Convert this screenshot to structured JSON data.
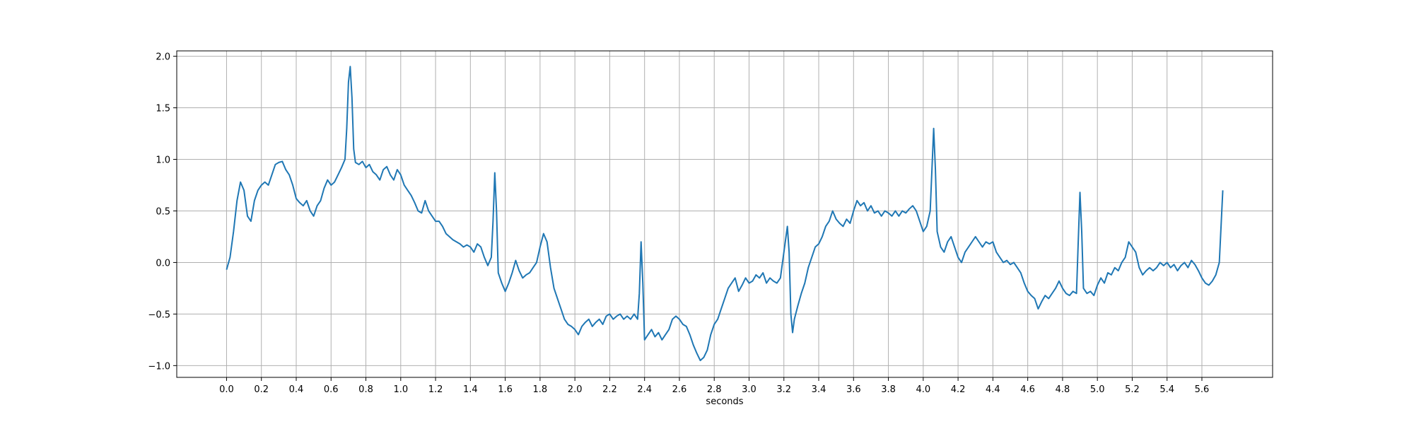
{
  "chart_data": {
    "type": "line",
    "xlabel": "seconds",
    "color": "#1f77b4",
    "grid": true,
    "xlim": [
      -0.286,
      6.006
    ],
    "ylim": [
      -1.114,
      2.052
    ],
    "xticks": [
      {
        "value": 0,
        "label": "0.0"
      },
      {
        "value": 0.2,
        "label": "0.2"
      },
      {
        "value": 0.4,
        "label": "0.4"
      },
      {
        "value": 0.6,
        "label": "0.6"
      },
      {
        "value": 0.8,
        "label": "0.8"
      },
      {
        "value": 1,
        "label": "1.0"
      },
      {
        "value": 1.2,
        "label": "1.2"
      },
      {
        "value": 1.4,
        "label": "1.4"
      },
      {
        "value": 1.6,
        "label": "1.6"
      },
      {
        "value": 1.8,
        "label": "1.8"
      },
      {
        "value": 2,
        "label": "2.0"
      },
      {
        "value": 2.2,
        "label": "2.2"
      },
      {
        "value": 2.4,
        "label": "2.4"
      },
      {
        "value": 2.6,
        "label": "2.6"
      },
      {
        "value": 2.8,
        "label": "2.8"
      },
      {
        "value": 3,
        "label": "3.0"
      },
      {
        "value": 3.2,
        "label": "3.2"
      },
      {
        "value": 3.4,
        "label": "3.4"
      },
      {
        "value": 3.6,
        "label": "3.6"
      },
      {
        "value": 3.8,
        "label": "3.8"
      },
      {
        "value": 4,
        "label": "4.0"
      },
      {
        "value": 4.2,
        "label": "4.2"
      },
      {
        "value": 4.4,
        "label": "4.4"
      },
      {
        "value": 4.6,
        "label": "4.6"
      },
      {
        "value": 4.8,
        "label": "4.8"
      },
      {
        "value": 5,
        "label": "5.0"
      },
      {
        "value": 5.2,
        "label": "5.2"
      },
      {
        "value": 5.4,
        "label": "5.4"
      },
      {
        "value": 5.6,
        "label": "5.6"
      }
    ],
    "yticks": [
      {
        "value": -1,
        "label": "−1.0"
      },
      {
        "value": -0.5,
        "label": "−0.5"
      },
      {
        "value": 0,
        "label": "0.0"
      },
      {
        "value": 0.5,
        "label": "0.5"
      },
      {
        "value": 1,
        "label": "1.0"
      },
      {
        "value": 1.5,
        "label": "1.5"
      },
      {
        "value": 2,
        "label": "2.0"
      }
    ],
    "x": [
      0.0,
      0.02,
      0.04,
      0.06,
      0.08,
      0.1,
      0.12,
      0.14,
      0.16,
      0.18,
      0.2,
      0.22,
      0.24,
      0.26,
      0.28,
      0.3,
      0.32,
      0.34,
      0.36,
      0.38,
      0.4,
      0.42,
      0.44,
      0.46,
      0.48,
      0.5,
      0.52,
      0.54,
      0.56,
      0.58,
      0.6,
      0.62,
      0.64,
      0.66,
      0.68,
      0.69,
      0.7,
      0.71,
      0.72,
      0.73,
      0.74,
      0.76,
      0.78,
      0.8,
      0.82,
      0.84,
      0.86,
      0.88,
      0.9,
      0.92,
      0.94,
      0.96,
      0.98,
      1.0,
      1.02,
      1.04,
      1.06,
      1.08,
      1.1,
      1.12,
      1.14,
      1.16,
      1.18,
      1.2,
      1.22,
      1.24,
      1.26,
      1.28,
      1.3,
      1.32,
      1.34,
      1.36,
      1.38,
      1.4,
      1.42,
      1.44,
      1.46,
      1.48,
      1.5,
      1.52,
      1.53,
      1.54,
      1.55,
      1.56,
      1.58,
      1.6,
      1.62,
      1.64,
      1.66,
      1.68,
      1.7,
      1.72,
      1.74,
      1.76,
      1.78,
      1.8,
      1.82,
      1.84,
      1.86,
      1.88,
      1.9,
      1.92,
      1.94,
      1.96,
      1.98,
      2.0,
      2.02,
      2.04,
      2.06,
      2.08,
      2.1,
      2.12,
      2.14,
      2.16,
      2.18,
      2.2,
      2.22,
      2.24,
      2.26,
      2.28,
      2.3,
      2.32,
      2.34,
      2.36,
      2.37,
      2.38,
      2.39,
      2.4,
      2.42,
      2.44,
      2.46,
      2.48,
      2.5,
      2.52,
      2.54,
      2.56,
      2.58,
      2.6,
      2.62,
      2.64,
      2.66,
      2.68,
      2.7,
      2.72,
      2.74,
      2.76,
      2.78,
      2.8,
      2.82,
      2.84,
      2.86,
      2.88,
      2.9,
      2.92,
      2.94,
      2.96,
      2.98,
      3.0,
      3.02,
      3.04,
      3.06,
      3.08,
      3.1,
      3.12,
      3.14,
      3.16,
      3.18,
      3.2,
      3.22,
      3.23,
      3.24,
      3.25,
      3.26,
      3.28,
      3.3,
      3.32,
      3.34,
      3.36,
      3.38,
      3.4,
      3.42,
      3.44,
      3.46,
      3.48,
      3.5,
      3.52,
      3.54,
      3.56,
      3.58,
      3.6,
      3.62,
      3.64,
      3.66,
      3.68,
      3.7,
      3.72,
      3.74,
      3.76,
      3.78,
      3.8,
      3.82,
      3.84,
      3.86,
      3.88,
      3.9,
      3.92,
      3.94,
      3.96,
      3.98,
      4.0,
      4.02,
      4.04,
      4.05,
      4.06,
      4.07,
      4.08,
      4.1,
      4.12,
      4.14,
      4.16,
      4.18,
      4.2,
      4.22,
      4.24,
      4.26,
      4.28,
      4.3,
      4.32,
      4.34,
      4.36,
      4.38,
      4.4,
      4.42,
      4.44,
      4.46,
      4.48,
      4.5,
      4.52,
      4.54,
      4.56,
      4.58,
      4.6,
      4.62,
      4.64,
      4.66,
      4.68,
      4.7,
      4.72,
      4.74,
      4.76,
      4.78,
      4.8,
      4.82,
      4.84,
      4.86,
      4.88,
      4.89,
      4.9,
      4.91,
      4.92,
      4.94,
      4.96,
      4.98,
      5.0,
      5.02,
      5.04,
      5.06,
      5.08,
      5.1,
      5.12,
      5.14,
      5.16,
      5.18,
      5.2,
      5.22,
      5.24,
      5.26,
      5.28,
      5.3,
      5.32,
      5.34,
      5.36,
      5.38,
      5.4,
      5.42,
      5.44,
      5.46,
      5.48,
      5.5,
      5.52,
      5.54,
      5.56,
      5.58,
      5.6,
      5.62,
      5.64,
      5.66,
      5.68,
      5.7,
      5.72
    ],
    "values": [
      -0.07,
      0.05,
      0.3,
      0.6,
      0.78,
      0.7,
      0.45,
      0.4,
      0.6,
      0.7,
      0.75,
      0.78,
      0.75,
      0.85,
      0.95,
      0.97,
      0.98,
      0.9,
      0.85,
      0.75,
      0.62,
      0.58,
      0.55,
      0.6,
      0.5,
      0.45,
      0.55,
      0.6,
      0.72,
      0.8,
      0.75,
      0.78,
      0.85,
      0.92,
      1.0,
      1.3,
      1.75,
      1.9,
      1.6,
      1.1,
      0.97,
      0.95,
      0.98,
      0.92,
      0.95,
      0.88,
      0.85,
      0.8,
      0.9,
      0.93,
      0.85,
      0.8,
      0.9,
      0.85,
      0.75,
      0.7,
      0.65,
      0.58,
      0.5,
      0.48,
      0.6,
      0.5,
      0.45,
      0.4,
      0.4,
      0.35,
      0.28,
      0.25,
      0.22,
      0.2,
      0.18,
      0.15,
      0.17,
      0.15,
      0.1,
      0.18,
      0.15,
      0.05,
      -0.03,
      0.05,
      0.4,
      0.87,
      0.5,
      -0.1,
      -0.2,
      -0.28,
      -0.2,
      -0.1,
      0.02,
      -0.08,
      -0.15,
      -0.12,
      -0.1,
      -0.05,
      0.0,
      0.15,
      0.28,
      0.2,
      -0.05,
      -0.25,
      -0.35,
      -0.45,
      -0.55,
      -0.6,
      -0.62,
      -0.65,
      -0.7,
      -0.62,
      -0.58,
      -0.55,
      -0.62,
      -0.58,
      -0.55,
      -0.6,
      -0.52,
      -0.5,
      -0.55,
      -0.52,
      -0.5,
      -0.55,
      -0.52,
      -0.55,
      -0.5,
      -0.55,
      -0.3,
      0.2,
      -0.2,
      -0.75,
      -0.7,
      -0.65,
      -0.72,
      -0.68,
      -0.75,
      -0.7,
      -0.65,
      -0.55,
      -0.52,
      -0.55,
      -0.6,
      -0.62,
      -0.7,
      -0.8,
      -0.88,
      -0.95,
      -0.92,
      -0.85,
      -0.7,
      -0.6,
      -0.55,
      -0.45,
      -0.35,
      -0.25,
      -0.2,
      -0.15,
      -0.28,
      -0.22,
      -0.15,
      -0.2,
      -0.18,
      -0.12,
      -0.15,
      -0.1,
      -0.2,
      -0.15,
      -0.18,
      -0.2,
      -0.15,
      0.1,
      0.35,
      0.1,
      -0.5,
      -0.68,
      -0.55,
      -0.42,
      -0.3,
      -0.2,
      -0.05,
      0.05,
      0.15,
      0.18,
      0.25,
      0.35,
      0.4,
      0.5,
      0.42,
      0.38,
      0.35,
      0.42,
      0.38,
      0.5,
      0.6,
      0.55,
      0.58,
      0.5,
      0.55,
      0.48,
      0.5,
      0.45,
      0.5,
      0.48,
      0.45,
      0.5,
      0.45,
      0.5,
      0.48,
      0.52,
      0.55,
      0.5,
      0.4,
      0.3,
      0.35,
      0.5,
      0.9,
      1.3,
      0.9,
      0.3,
      0.15,
      0.1,
      0.2,
      0.25,
      0.15,
      0.05,
      0.0,
      0.1,
      0.15,
      0.2,
      0.25,
      0.2,
      0.15,
      0.2,
      0.18,
      0.2,
      0.1,
      0.05,
      0.0,
      0.02,
      -0.02,
      0.0,
      -0.05,
      -0.1,
      -0.2,
      -0.28,
      -0.32,
      -0.35,
      -0.45,
      -0.38,
      -0.32,
      -0.35,
      -0.3,
      -0.25,
      -0.18,
      -0.25,
      -0.3,
      -0.32,
      -0.28,
      -0.3,
      0.2,
      0.68,
      0.3,
      -0.25,
      -0.3,
      -0.28,
      -0.32,
      -0.22,
      -0.15,
      -0.2,
      -0.1,
      -0.12,
      -0.05,
      -0.08,
      0.0,
      0.05,
      0.2,
      0.15,
      0.1,
      -0.05,
      -0.12,
      -0.08,
      -0.05,
      -0.08,
      -0.05,
      0.0,
      -0.03,
      0.0,
      -0.05,
      -0.02,
      -0.08,
      -0.03,
      0.0,
      -0.05,
      0.02,
      -0.02,
      -0.08,
      -0.15,
      -0.2,
      -0.22,
      -0.18,
      -0.12,
      0.0,
      0.7
    ]
  }
}
